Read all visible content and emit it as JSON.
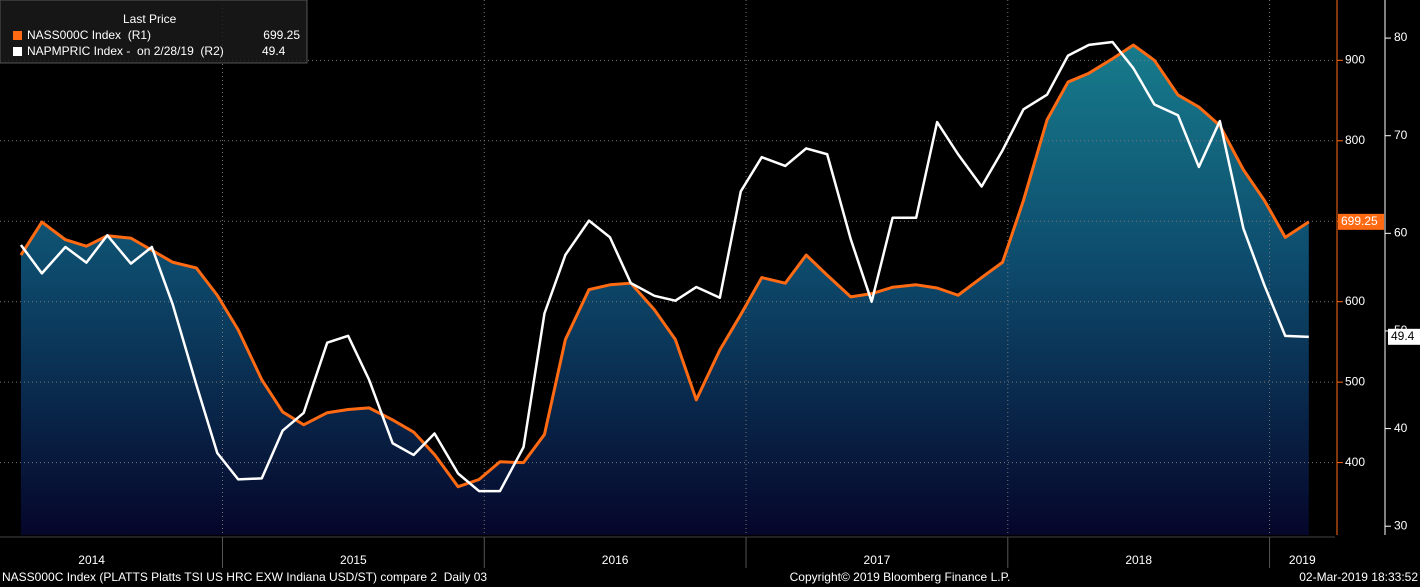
{
  "chart_data": {
    "type": "line",
    "legend_title": "Last Price",
    "xlim": [
      2014.15,
      2019.25
    ],
    "xticks": [
      {
        "value": 2014.5,
        "label": "2014"
      },
      {
        "value": 2015.5,
        "label": "2015"
      },
      {
        "value": 2016.5,
        "label": "2016"
      },
      {
        "value": 2017.5,
        "label": "2017"
      },
      {
        "value": 2018.5,
        "label": "2018"
      },
      {
        "value": 2019.125,
        "label": "2019"
      }
    ],
    "xgrid": [
      2015,
      2016,
      2017,
      2018,
      2019
    ],
    "ylim": [
      310,
      975
    ],
    "yticks": [
      400,
      500,
      600,
      700,
      800,
      900
    ],
    "y2lim": [
      29.1,
      83.9
    ],
    "y2ticks": [
      30,
      40,
      50,
      60,
      70,
      80
    ],
    "grid": true,
    "x": [
      2014.23,
      2014.31,
      2014.4,
      2014.48,
      2014.56,
      2014.65,
      2014.73,
      2014.81,
      2014.9,
      2014.98,
      2015.06,
      2015.15,
      2015.23,
      2015.31,
      2015.4,
      2015.48,
      2015.56,
      2015.65,
      2015.73,
      2015.81,
      2015.9,
      2015.98,
      2016.06,
      2016.15,
      2016.23,
      2016.31,
      2016.4,
      2016.48,
      2016.56,
      2016.65,
      2016.73,
      2016.81,
      2016.9,
      2016.98,
      2017.06,
      2017.15,
      2017.23,
      2017.31,
      2017.4,
      2017.48,
      2017.56,
      2017.65,
      2017.73,
      2017.81,
      2017.9,
      2017.98,
      2018.06,
      2018.15,
      2018.23,
      2018.31,
      2018.4,
      2018.48,
      2018.56,
      2018.65,
      2018.73,
      2018.81,
      2018.9,
      2018.98,
      2019.06,
      2019.15
    ],
    "series": [
      {
        "name": "NASS000C Index  (R1)",
        "color": "#ff6a13",
        "axis": "y",
        "values": [
          658,
          699,
          677,
          669,
          682,
          679,
          664,
          649,
          642,
          608,
          565,
          503,
          463,
          447,
          462,
          466,
          468,
          453,
          438,
          410,
          370,
          379,
          401,
          400,
          435,
          553,
          615,
          621,
          623,
          590,
          553,
          478,
          540,
          584,
          630,
          623,
          658,
          633,
          606,
          610,
          618,
          621,
          617,
          608,
          630,
          649,
          726,
          826,
          873,
          884,
          902,
          919,
          900,
          857,
          842,
          819,
          764,
          726,
          680,
          699.25
        ]
      },
      {
        "name": "NAPMPRIC Index -  on 2/28/19  (R2)",
        "color": "#ffffff",
        "axis": "y2",
        "values": [
          58.8,
          55.9,
          58.6,
          57.0,
          59.8,
          56.9,
          58.6,
          52.7,
          44.5,
          37.5,
          34.8,
          34.9,
          39.8,
          41.6,
          48.8,
          49.5,
          45.0,
          38.5,
          37.3,
          39.5,
          35.4,
          33.6,
          33.6,
          38.1,
          51.8,
          57.8,
          61.3,
          59.6,
          54.9,
          53.6,
          53.1,
          54.5,
          53.4,
          64.3,
          67.8,
          66.9,
          68.7,
          68.1,
          59.4,
          53.0,
          61.6,
          61.6,
          71.4,
          68.1,
          64.8,
          68.5,
          72.7,
          74.2,
          78.2,
          79.3,
          79.6,
          76.9,
          73.2,
          72.1,
          66.8,
          71.5,
          60.5,
          54.7,
          49.5,
          49.4
        ]
      }
    ],
    "footer": {
      "left": "NASS000C Index (PLATTS Platts TSI US HRC EXW Indiana USD/ST) compare 2  Daily 03",
      "center": "Copyright© 2019 Bloomberg Finance L.P.",
      "right": "02-Mar-2019 18:33:52"
    }
  }
}
